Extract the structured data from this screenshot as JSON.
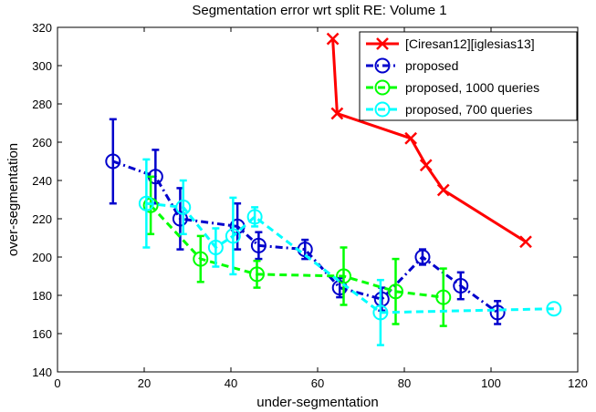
{
  "chart_data": {
    "type": "line",
    "title": "Segmentation error wrt split RE: Volume 1",
    "xlabel": "under-segmentation",
    "ylabel": "over-segmentation",
    "xlim": [
      0,
      120
    ],
    "ylim": [
      140,
      320
    ],
    "xticks": [
      0,
      20,
      40,
      60,
      80,
      100,
      120
    ],
    "yticks": [
      140,
      160,
      180,
      200,
      220,
      240,
      260,
      280,
      300,
      320
    ],
    "grid": false,
    "legend_position": "top-right",
    "series": [
      {
        "name": "[Ciresan12][iglesias13]",
        "color": "#ff0000",
        "marker": "x",
        "dash": "solid",
        "x": [
          63.5,
          64.5,
          81.5,
          85,
          89,
          108
        ],
        "y": [
          314,
          275,
          262,
          248,
          235,
          208
        ],
        "err": null
      },
      {
        "name": "proposed",
        "color": "#0000cc",
        "marker": "o",
        "dash": "dashdot",
        "x": [
          12.8,
          22.6,
          28.3,
          41.5,
          46.4,
          57.1,
          65.1,
          74.8,
          84.2,
          93.0,
          101.5
        ],
        "y": [
          250,
          242,
          220,
          216,
          206,
          204,
          184,
          178,
          200,
          185,
          171
        ],
        "err": [
          22,
          14,
          16,
          12,
          7,
          5,
          5,
          6,
          4,
          7,
          6
        ]
      },
      {
        "name": "proposed, 1000 queries",
        "color": "#00ff00",
        "marker": "o",
        "dash": "dash",
        "x": [
          21.5,
          33.0,
          46.0,
          66.0,
          78.0,
          89.0
        ],
        "y": [
          227,
          199,
          191,
          190,
          182,
          179
        ],
        "err": [
          15,
          12,
          7,
          15,
          17,
          15
        ]
      },
      {
        "name": "proposed, 700 queries",
        "color": "#00ffff",
        "marker": "o",
        "dash": "dash",
        "x": [
          20.5,
          29.0,
          36.5,
          40.5,
          45.5,
          74.5,
          114.5
        ],
        "y": [
          228,
          226,
          205,
          211,
          221,
          171,
          173
        ],
        "err": [
          23,
          14,
          10,
          20,
          5,
          17,
          0
        ]
      }
    ]
  }
}
